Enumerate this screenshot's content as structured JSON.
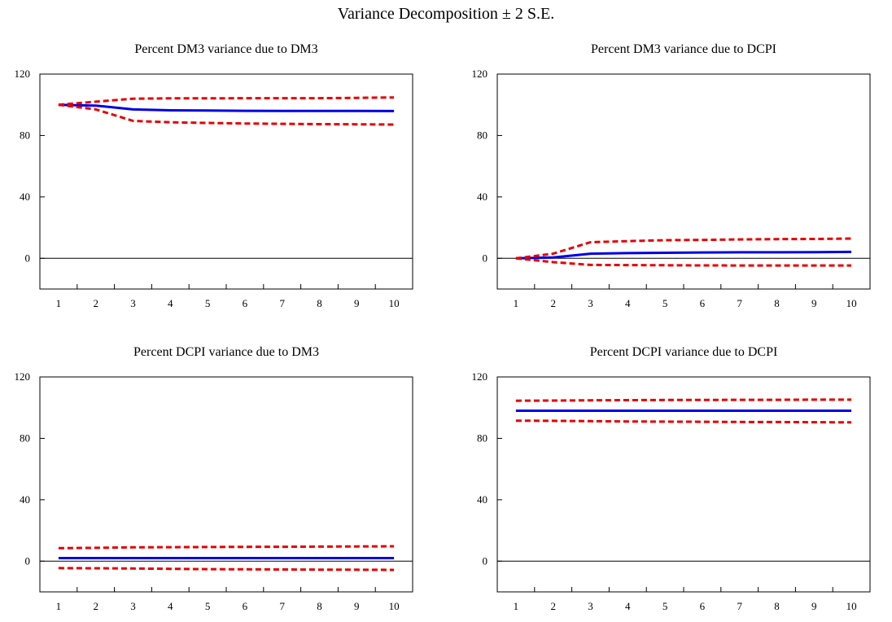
{
  "title": "Variance Decomposition ± 2 S.E.",
  "colors": {
    "estimate": "#0000e6",
    "bands": "#e60000",
    "axis": "#000000",
    "zero_line": "#000000"
  },
  "chart_data": [
    {
      "type": "line",
      "title": "Percent DM3 variance due to DM3",
      "x": [
        1,
        2,
        3,
        4,
        5,
        6,
        7,
        8,
        9,
        10
      ],
      "xlabel": "",
      "ylabel": "",
      "ylim": [
        -20,
        120
      ],
      "yticks": [
        0,
        40,
        80,
        120
      ],
      "xticks": [
        "1",
        "2",
        "3",
        "4",
        "5",
        "6",
        "7",
        "8",
        "9",
        "10"
      ],
      "grid": false,
      "series": [
        {
          "role": "estimate",
          "values": [
            100,
            99.5,
            97,
            96.4,
            96.3,
            96.1,
            96.0,
            96.0,
            96.0,
            95.9
          ]
        },
        {
          "role": "upper",
          "values": [
            100,
            102,
            104,
            104.2,
            104.2,
            104.3,
            104.3,
            104.3,
            104.5,
            104.8
          ]
        },
        {
          "role": "lower",
          "values": [
            100,
            97,
            89.5,
            88.6,
            88.2,
            87.8,
            87.6,
            87.4,
            87.3,
            87.1
          ]
        }
      ]
    },
    {
      "type": "line",
      "title": "Percent DM3 variance due to DCPI",
      "x": [
        1,
        2,
        3,
        4,
        5,
        6,
        7,
        8,
        9,
        10
      ],
      "xlabel": "",
      "ylabel": "",
      "ylim": [
        -20,
        120
      ],
      "yticks": [
        0,
        40,
        80,
        120
      ],
      "xticks": [
        "1",
        "2",
        "3",
        "4",
        "5",
        "6",
        "7",
        "8",
        "9",
        "10"
      ],
      "grid": false,
      "series": [
        {
          "role": "estimate",
          "values": [
            0,
            0.5,
            3,
            3.4,
            3.6,
            3.8,
            3.9,
            3.9,
            4.0,
            4.2
          ]
        },
        {
          "role": "upper",
          "values": [
            0,
            3,
            10.5,
            11.2,
            11.8,
            12.0,
            12.3,
            12.5,
            12.6,
            12.9
          ]
        },
        {
          "role": "lower",
          "values": [
            0,
            -2.5,
            -4.3,
            -4.4,
            -4.5,
            -4.6,
            -4.7,
            -4.7,
            -4.7,
            -4.7
          ]
        }
      ]
    },
    {
      "type": "line",
      "title": "Percent DCPI variance due to DM3",
      "x": [
        1,
        2,
        3,
        4,
        5,
        6,
        7,
        8,
        9,
        10
      ],
      "xlabel": "",
      "ylabel": "",
      "ylim": [
        -20,
        120
      ],
      "yticks": [
        0,
        40,
        80,
        120
      ],
      "xticks": [
        "1",
        "2",
        "3",
        "4",
        "5",
        "6",
        "7",
        "8",
        "9",
        "10"
      ],
      "grid": false,
      "series": [
        {
          "role": "estimate",
          "values": [
            2,
            2,
            2,
            2,
            2,
            2,
            2,
            2,
            2,
            2
          ]
        },
        {
          "role": "upper",
          "values": [
            8.5,
            8.7,
            9.0,
            9.1,
            9.2,
            9.3,
            9.4,
            9.5,
            9.6,
            9.7
          ]
        },
        {
          "role": "lower",
          "values": [
            -4.5,
            -4.6,
            -4.8,
            -5.0,
            -5.2,
            -5.3,
            -5.4,
            -5.5,
            -5.6,
            -5.7
          ]
        }
      ]
    },
    {
      "type": "line",
      "title": "Percent DCPI variance due to DCPI",
      "x": [
        1,
        2,
        3,
        4,
        5,
        6,
        7,
        8,
        9,
        10
      ],
      "xlabel": "",
      "ylabel": "",
      "ylim": [
        -20,
        120
      ],
      "yticks": [
        0,
        40,
        80,
        120
      ],
      "xticks": [
        "1",
        "2",
        "3",
        "4",
        "5",
        "6",
        "7",
        "8",
        "9",
        "10"
      ],
      "grid": false,
      "series": [
        {
          "role": "estimate",
          "values": [
            98,
            98,
            98,
            98,
            98,
            98,
            98,
            98,
            98,
            98
          ]
        },
        {
          "role": "upper",
          "values": [
            104.5,
            104.6,
            104.8,
            104.9,
            105.0,
            105.0,
            105.1,
            105.1,
            105.2,
            105.2
          ]
        },
        {
          "role": "lower",
          "values": [
            91.5,
            91.4,
            91.2,
            91.0,
            90.9,
            90.8,
            90.7,
            90.6,
            90.5,
            90.4
          ]
        }
      ]
    }
  ]
}
